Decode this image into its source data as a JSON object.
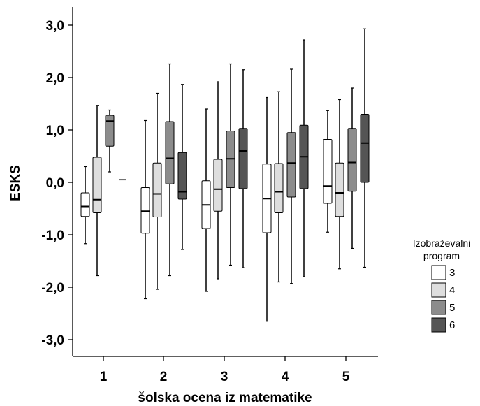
{
  "chart_data": {
    "type": "boxplot",
    "xlabel": "šolska ocena iz matematike",
    "ylabel": "ESKS",
    "ylim": [
      -3.3,
      3.3
    ],
    "y_ticks": [
      3.0,
      2.0,
      1.0,
      0.0,
      -1.0,
      -2.0,
      -3.0
    ],
    "y_tick_labels": [
      "3,0",
      "2,0",
      "1,0",
      "0,0",
      "-1,0",
      "-2,0",
      "-3,0"
    ],
    "categories": [
      "1",
      "2",
      "3",
      "4",
      "5"
    ],
    "legend": {
      "title_line1": "Izobraževalni",
      "title_line2": "program",
      "position": "right"
    },
    "series": [
      {
        "name": "3",
        "color": "#ffffff",
        "boxes": [
          {
            "min": -1.17,
            "q1": -0.65,
            "median": -0.46,
            "q3": -0.2,
            "max": 0.3
          },
          {
            "min": -2.22,
            "q1": -0.97,
            "median": -0.55,
            "q3": -0.1,
            "max": 1.18
          },
          {
            "min": -2.08,
            "q1": -0.88,
            "median": -0.43,
            "q3": 0.03,
            "max": 1.4
          },
          {
            "min": -2.65,
            "q1": -0.96,
            "median": -0.31,
            "q3": 0.35,
            "max": 1.62
          },
          {
            "min": -0.95,
            "q1": -0.4,
            "median": -0.07,
            "q3": 0.82,
            "max": 1.37
          }
        ]
      },
      {
        "name": "4",
        "color": "#dedede",
        "boxes": [
          {
            "min": -1.78,
            "q1": -0.58,
            "median": -0.33,
            "q3": 0.48,
            "max": 1.47
          },
          {
            "min": -2.04,
            "q1": -0.66,
            "median": -0.22,
            "q3": 0.37,
            "max": 1.7
          },
          {
            "min": -1.84,
            "q1": -0.55,
            "median": -0.13,
            "q3": 0.44,
            "max": 1.92
          },
          {
            "min": -1.9,
            "q1": -0.58,
            "median": -0.18,
            "q3": 0.36,
            "max": 1.73
          },
          {
            "min": -1.65,
            "q1": -0.65,
            "median": -0.2,
            "q3": 0.37,
            "max": 1.58
          }
        ]
      },
      {
        "name": "5",
        "color": "#8c8c8c",
        "boxes": [
          {
            "min": 0.2,
            "q1": 0.69,
            "median": 1.17,
            "q3": 1.28,
            "max": 1.38
          },
          {
            "min": -1.78,
            "q1": -0.03,
            "median": 0.46,
            "q3": 1.16,
            "max": 2.26
          },
          {
            "min": -1.58,
            "q1": -0.1,
            "median": 0.45,
            "q3": 0.98,
            "max": 2.26
          },
          {
            "min": -1.93,
            "q1": -0.28,
            "median": 0.37,
            "q3": 0.95,
            "max": 2.16
          },
          {
            "min": -1.26,
            "q1": -0.17,
            "median": 0.38,
            "q3": 1.03,
            "max": 1.8
          }
        ]
      },
      {
        "name": "6",
        "color": "#555555",
        "boxes": [
          {
            "single": 0.05
          },
          {
            "min": -1.28,
            "q1": -0.32,
            "median": -0.18,
            "q3": 0.57,
            "max": 1.87
          },
          {
            "min": -1.63,
            "q1": -0.12,
            "median": 0.6,
            "q3": 1.03,
            "max": 2.15
          },
          {
            "min": -1.8,
            "q1": -0.12,
            "median": 0.49,
            "q3": 1.09,
            "max": 2.72
          },
          {
            "min": -1.62,
            "q1": 0.0,
            "median": 0.75,
            "q3": 1.3,
            "max": 2.93
          }
        ]
      }
    ]
  }
}
